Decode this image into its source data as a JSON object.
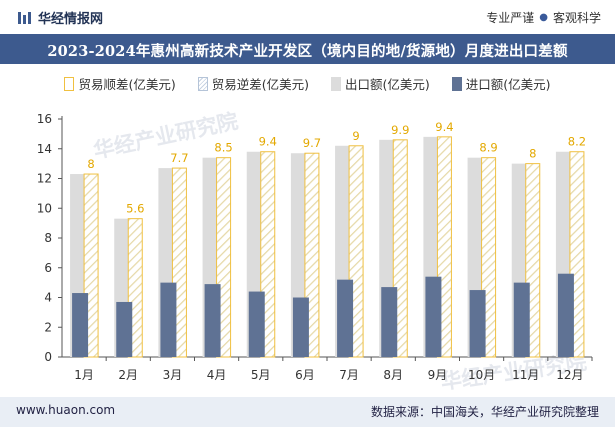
{
  "header": {
    "brand": "华经情报网",
    "tagline_a": "专业严谨",
    "tagline_b": "客观科学"
  },
  "title": "2023-2024年惠州高新技术产业开发区（境内目的地/货源地）月度进出口差额",
  "footer": {
    "url": "www.huaon.com",
    "source": "数据来源：中国海关，华经产业研究院整理"
  },
  "watermarks": [
    "华经产业研究院",
    "华经产业研究院"
  ],
  "colors": {
    "title_bg": "#3d5a8e",
    "export": "#dcdcdc",
    "import": "#5f7294",
    "surplus_border": "#f0c040",
    "label": "#e3a800"
  },
  "chart_data": {
    "type": "bar",
    "categories": [
      "1月",
      "2月",
      "3月",
      "4月",
      "5月",
      "6月",
      "7月",
      "8月",
      "9月",
      "10月",
      "11月",
      "12月"
    ],
    "series": [
      {
        "name": "贸易顺差(亿美元)",
        "values": [
          8,
          5.6,
          7.7,
          8.5,
          9.4,
          9.7,
          9,
          9.9,
          9.4,
          8.9,
          8,
          8.2
        ]
      },
      {
        "name": "贸易逆差(亿美元)",
        "values": [
          0,
          0,
          0,
          0,
          0,
          0,
          0,
          0,
          0,
          0,
          0,
          0
        ]
      },
      {
        "name": "出口额(亿美元)",
        "values": [
          12.3,
          9.3,
          12.7,
          13.4,
          13.8,
          13.7,
          14.2,
          14.6,
          14.8,
          13.4,
          13.0,
          13.8
        ]
      },
      {
        "name": "进口额(亿美元)",
        "values": [
          4.3,
          3.7,
          5.0,
          4.9,
          4.4,
          4.0,
          5.2,
          4.7,
          5.4,
          4.5,
          5.0,
          5.6
        ]
      }
    ],
    "data_labels": [
      "8",
      "5.6",
      "7.7",
      "8.5",
      "9.4",
      "9.7",
      "9",
      "9.9",
      "9.4",
      "8.9",
      "8",
      "8.2"
    ],
    "yticks": [
      "0",
      "2",
      "4",
      "6",
      "8",
      "10",
      "12",
      "14",
      "16"
    ],
    "ylim": [
      0,
      16
    ],
    "legend_position": "top",
    "grid": false
  }
}
